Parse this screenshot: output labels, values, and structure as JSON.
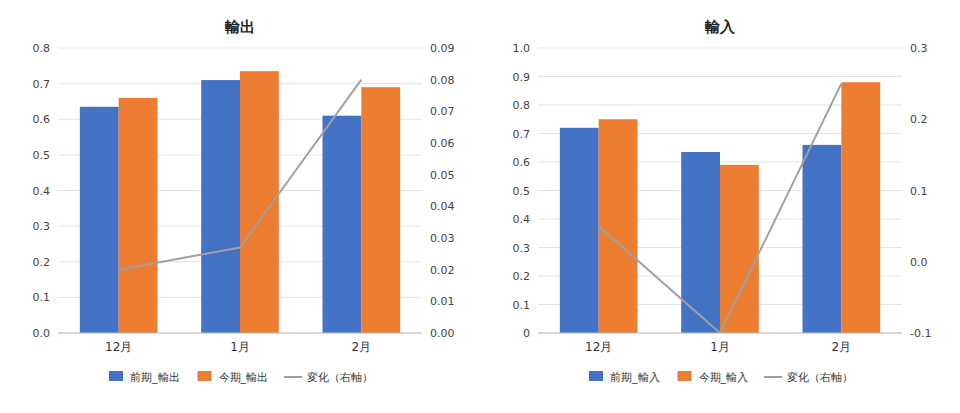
{
  "chart_data": [
    {
      "type": "bar",
      "title": "輸出",
      "categories": [
        "12月",
        "1月",
        "2月"
      ],
      "series": [
        {
          "name": "前期_輸出",
          "color": "#4472C4",
          "values": [
            0.635,
            0.71,
            0.61
          ]
        },
        {
          "name": "今期_輸出",
          "color": "#ED7D31",
          "values": [
            0.66,
            0.735,
            0.69
          ]
        },
        {
          "name": "変化（右軸）",
          "color": "#A0A0A0",
          "values": [
            0.02,
            0.027,
            0.08
          ],
          "type": "line",
          "axis": "y2"
        }
      ],
      "ylim": [
        0.0,
        0.8
      ],
      "yticks": [
        {
          "value": 0.0,
          "label": "0.0"
        },
        0.1,
        0.2,
        0.3,
        0.4,
        0.5,
        0.6,
        0.7,
        0.8
      ],
      "y2lim": [
        0,
        0.09
      ],
      "y2ticks": [
        {
          "value": 0,
          "label": "0.00"
        },
        0.01,
        0.02,
        0.03,
        0.04,
        0.05,
        0.06,
        0.07,
        0.08,
        0.09
      ],
      "grid": true,
      "legend": "bottom"
    },
    {
      "type": "bar",
      "title": "輸入",
      "categories": [
        "12月",
        "1月",
        "2月"
      ],
      "series": [
        {
          "name": "前期_輸入",
          "color": "#4472C4",
          "values": [
            0.72,
            0.635,
            0.66
          ]
        },
        {
          "name": "今期_輸入",
          "color": "#ED7D31",
          "values": [
            0.75,
            0.59,
            0.88
          ]
        },
        {
          "name": "変化（右軸）",
          "color": "#A0A0A0",
          "values": [
            0.05,
            -0.1,
            0.25
          ],
          "type": "line",
          "axis": "y2"
        }
      ],
      "ylim": [
        0.0,
        1.0
      ],
      "yticks": [
        0,
        0.1,
        0.2,
        0.3,
        0.4,
        0.5,
        0.6,
        0.7,
        0.8,
        0.9,
        {
          "value": 1.0,
          "label": "1.0"
        }
      ],
      "y2lim": [
        -0.1,
        0.3
      ],
      "y2ticks": [
        -0.1,
        {
          "value": 0.0,
          "label": "0.0"
        },
        0.1,
        0.2,
        0.3
      ],
      "grid": true,
      "legend": "bottom"
    }
  ]
}
